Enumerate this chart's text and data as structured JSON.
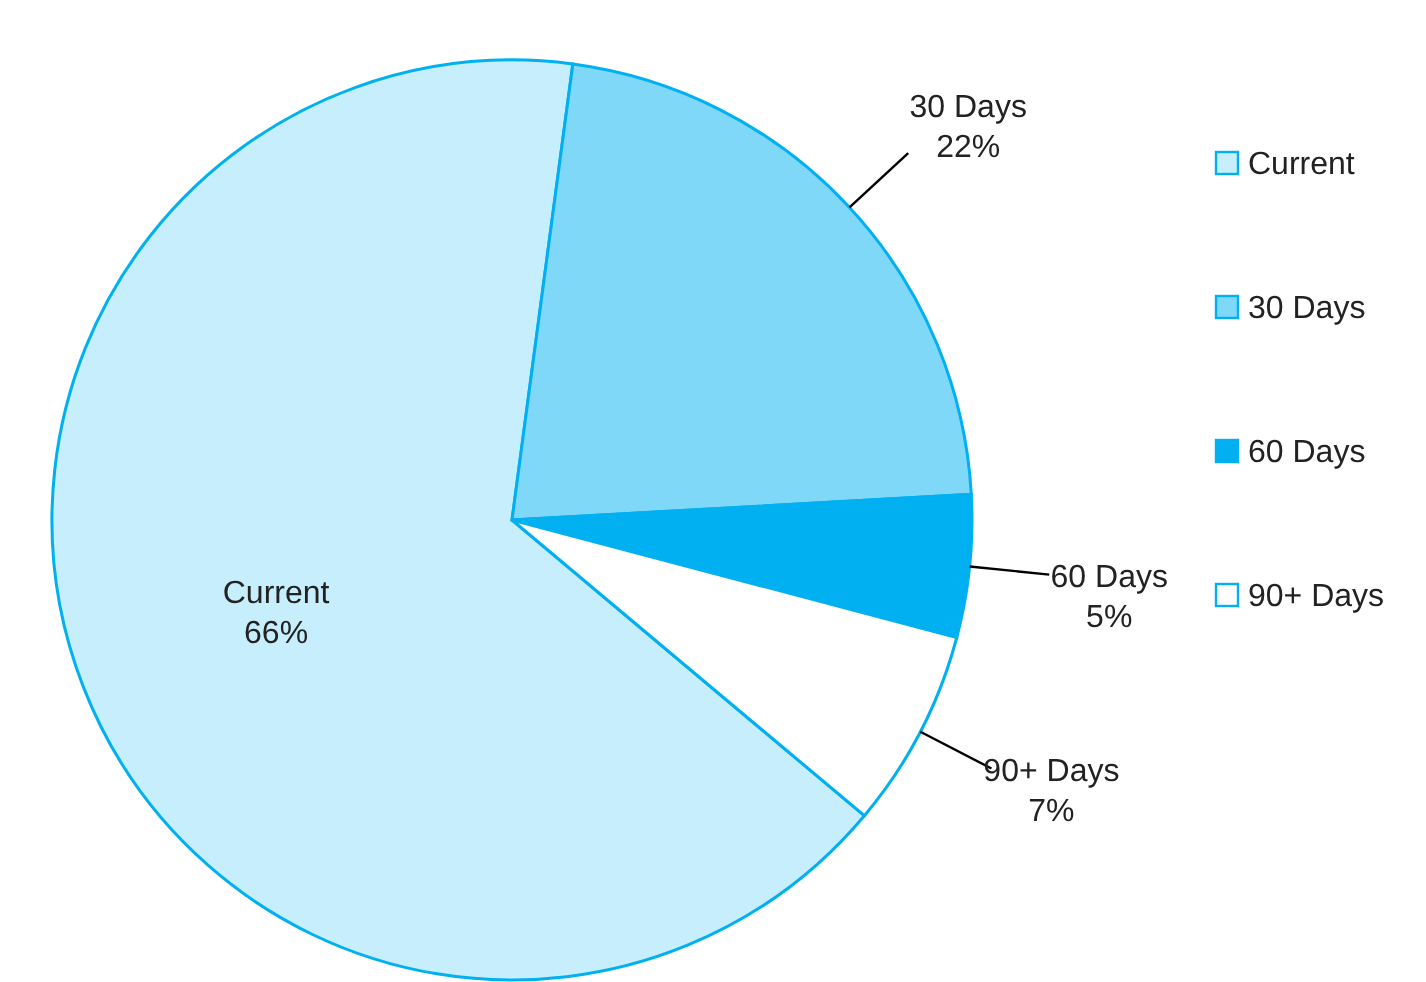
{
  "chart_data": {
    "type": "pie",
    "categories": [
      "Current",
      "30 Days",
      "60 Days",
      "90+ Days"
    ],
    "values": [
      66,
      22,
      5,
      7
    ],
    "colors": [
      "#c6eefc",
      "#80d8f8",
      "#00b0f0",
      "#ffffff"
    ],
    "value_labels": [
      "66%",
      "22%",
      "5%",
      "7%"
    ],
    "legend": "right"
  }
}
